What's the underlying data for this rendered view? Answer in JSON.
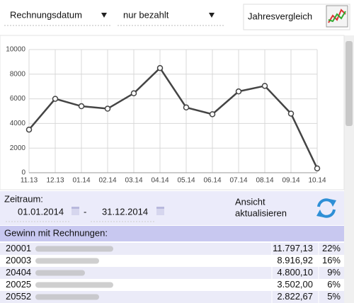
{
  "toolbar": {
    "date_field": "Rechnungsdatum",
    "filter": "nur bezahlt",
    "compare_button": "Jahresvergleich"
  },
  "chart_data": {
    "type": "line",
    "categories": [
      "11.13",
      "12.13",
      "01.14",
      "02.14",
      "03.14",
      "04.14",
      "05.14",
      "06.14",
      "07.14",
      "08.14",
      "09.14",
      "10.14"
    ],
    "values": [
      3500,
      6000,
      5400,
      5200,
      6450,
      8500,
      5300,
      4750,
      6600,
      7050,
      4800,
      350
    ],
    "color": "#444444",
    "ylim": [
      0,
      10000
    ],
    "yticks": [
      0,
      2000,
      4000,
      6000,
      8000,
      10000
    ],
    "grid": true
  },
  "period": {
    "label": "Zeitraum:",
    "from": "01.01.2014",
    "separator": "-",
    "to": "31.12.2014",
    "refresh_button": [
      "Ansicht",
      "aktualisieren"
    ]
  },
  "table": {
    "title": "Gewinn mit Rechnungen:",
    "rows": [
      [
        "20001",
        "11.797,13",
        "22%"
      ],
      [
        "20003",
        "8.916,92",
        "16%"
      ],
      [
        "20404",
        "4.800,10",
        "9%"
      ],
      [
        "20025",
        "3.502,00",
        "6%"
      ],
      [
        "20552",
        "2.822,67",
        "5%"
      ]
    ]
  }
}
